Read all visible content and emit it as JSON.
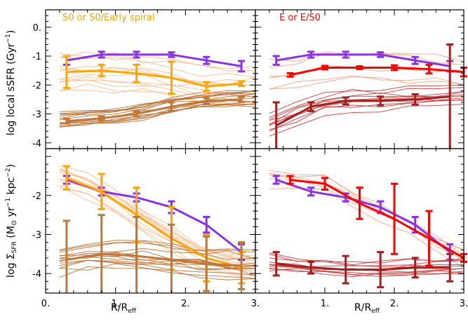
{
  "colors": {
    "purple": "#8a32e6",
    "orange": "#ffa500",
    "orange_thin": "#ffb98a",
    "brown": "#c07838",
    "brown_thin": "#b86a28",
    "red": "#ff0000",
    "darkred": "#a02020",
    "red_thin": "#cc3030",
    "salmon_thin": "#f3a080"
  },
  "labels": {
    "panel_left": "S0 or S0/Early spiral",
    "panel_right": "E or E/S0",
    "xlabel": "R/R",
    "xlabel_sub": "eff",
    "ylabel_top": "log local sSFR (Gyr",
    "ylabel_top_sup": "−1",
    "ylabel_top_end": ")",
    "ylabel_bottom_pre": "log Σ",
    "ylabel_bottom_sub": "SFR",
    "ylabel_bottom_mid": " (M",
    "ylabel_bottom_sun": "⊙",
    "ylabel_bottom_yr": " yr",
    "ylabel_bottom_sup1": "−1",
    "ylabel_bottom_kpc": " kpc",
    "ylabel_bottom_sup2": "−2",
    "ylabel_bottom_end": ")"
  },
  "chart_data": [
    {
      "panel": "top-left",
      "type": "line",
      "xlim": [
        0,
        3
      ],
      "ylim": [
        -4.2,
        0.6
      ],
      "x_ticks": [
        "0.",
        "1.",
        "2.",
        "3."
      ],
      "y_ticks": [
        "0.",
        "-1",
        "-2",
        "-3",
        "-4"
      ],
      "series": [
        {
          "color": "purple",
          "x": [
            0.3,
            0.8,
            1.3,
            1.8,
            2.3,
            2.8
          ],
          "y": [
            -1.15,
            -0.95,
            -0.95,
            -0.95,
            -1.15,
            -1.35
          ],
          "err": [
            0.15,
            0.1,
            0.1,
            0.08,
            0.12,
            0.18
          ]
        },
        {
          "color": "orange",
          "x": [
            0.3,
            0.8,
            1.3,
            1.8,
            2.3,
            2.8
          ],
          "y": [
            -1.55,
            -1.5,
            -1.6,
            -1.75,
            -2.05,
            -1.95
          ],
          "err": [
            0.55,
            0.2,
            0.3,
            0.55,
            0.15,
            0.08
          ]
        },
        {
          "color": "brown",
          "x": [
            0.3,
            0.8,
            1.3,
            1.8,
            2.3,
            2.8
          ],
          "y": [
            -3.25,
            -3.15,
            -3.0,
            -2.75,
            -2.55,
            -2.5
          ],
          "err": [
            0.08,
            0.06,
            0.08,
            0.15,
            0.1,
            0.08
          ]
        }
      ]
    },
    {
      "panel": "top-right",
      "type": "line",
      "xlim": [
        0,
        3
      ],
      "ylim": [
        -4.2,
        0.6
      ],
      "x_ticks": [
        "0.",
        "1.",
        "2.",
        "3."
      ],
      "series": [
        {
          "color": "purple",
          "x": [
            0.3,
            0.8,
            1.3,
            1.8,
            2.3,
            2.8
          ],
          "y": [
            -1.15,
            -0.95,
            -0.95,
            -0.95,
            -1.15,
            -1.35
          ],
          "err": [
            0.15,
            0.1,
            0.1,
            0.08,
            0.12,
            0.18
          ]
        },
        {
          "color": "red",
          "x": [
            0.5,
            1.0,
            1.5,
            2.0,
            2.5,
            3.0
          ],
          "y": [
            -1.65,
            -1.4,
            -1.4,
            -1.4,
            -1.45,
            -1.55
          ],
          "err": [
            0.06,
            0.06,
            0.05,
            0.08,
            0.15,
            0.15
          ]
        },
        {
          "color": "darkred",
          "x": [
            0.3,
            0.8,
            1.3,
            1.8,
            2.3,
            2.8
          ],
          "y": [
            -3.4,
            -2.75,
            -2.55,
            -2.55,
            -2.5,
            -2.4
          ],
          "err": [
            0.8,
            0.15,
            0.12,
            0.15,
            0.18,
            1.8
          ]
        }
      ]
    },
    {
      "panel": "bottom-left",
      "type": "line",
      "xlim": [
        0,
        3
      ],
      "ylim": [
        -4.5,
        -0.8
      ],
      "x_ticks": [
        "0.",
        "1.",
        "2.",
        "3."
      ],
      "y_ticks": [
        "-2",
        "-3",
        "-4"
      ],
      "series": [
        {
          "color": "purple",
          "x": [
            0.3,
            0.8,
            1.3,
            1.8,
            2.3,
            2.8
          ],
          "y": [
            -1.6,
            -1.9,
            -2.05,
            -2.3,
            -2.75,
            -3.45
          ],
          "err": [
            0.1,
            0.1,
            0.1,
            0.15,
            0.2,
            0.2
          ]
        },
        {
          "color": "orange",
          "x": [
            0.3,
            0.8,
            1.3,
            1.8,
            2.3,
            2.8
          ],
          "y": [
            -1.55,
            -1.9,
            -2.5,
            -3.1,
            -3.6,
            -3.85
          ],
          "err": [
            0.3,
            0.45,
            0.7,
            0.8,
            0.6,
            0.4
          ]
        },
        {
          "color": "brown",
          "x": [
            0.3,
            0.8,
            1.3,
            1.8,
            2.3,
            2.8
          ],
          "y": [
            -3.65,
            -3.5,
            -3.55,
            -3.65,
            -3.75,
            -3.8
          ],
          "err": [
            1.0,
            1.0,
            1.0,
            0.9,
            0.7,
            0.6
          ]
        }
      ]
    },
    {
      "panel": "bottom-right",
      "type": "line",
      "xlim": [
        0,
        3
      ],
      "ylim": [
        -4.5,
        -0.8
      ],
      "x_ticks": [
        "0.",
        "1.",
        "2.",
        "3."
      ],
      "series": [
        {
          "color": "purple",
          "x": [
            0.3,
            0.8,
            1.3,
            1.8,
            2.3,
            2.8
          ],
          "y": [
            -1.6,
            -1.9,
            -2.05,
            -2.3,
            -2.75,
            -3.45
          ],
          "err": [
            0.1,
            0.1,
            0.1,
            0.15,
            0.2,
            0.2
          ]
        },
        {
          "color": "red",
          "x": [
            0.5,
            1.0,
            1.5,
            2.0,
            2.5,
            3.0
          ],
          "y": [
            -1.6,
            -1.7,
            -2.2,
            -2.6,
            -3.1,
            -3.6
          ],
          "err": [
            0.1,
            0.15,
            0.4,
            0.9,
            0.7,
            0.1
          ]
        },
        {
          "color": "darkred",
          "x": [
            0.3,
            0.8,
            1.3,
            1.8,
            2.3,
            2.8
          ],
          "y": [
            -3.75,
            -3.85,
            -3.9,
            -3.9,
            -3.85,
            -3.85
          ],
          "err": [
            0.3,
            0.15,
            0.35,
            0.45,
            0.25,
            0.35
          ]
        }
      ]
    }
  ]
}
